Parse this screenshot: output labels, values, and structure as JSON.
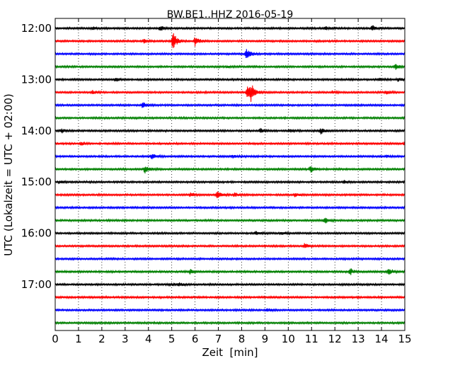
{
  "chart_data": {
    "type": "line",
    "chart_kind": "seismogram-dayplot",
    "title": "BW.BE1..HHZ 2016-05-19",
    "xlabel": "Zeit  [min]",
    "ylabel": "UTC (Lokalzeit = UTC + 02:00)",
    "xlim": [
      0,
      15
    ],
    "x_ticks": [
      "0",
      "1",
      "2",
      "3",
      "4",
      "5",
      "6",
      "7",
      "8",
      "9",
      "10",
      "11",
      "12",
      "13",
      "14",
      "15"
    ],
    "y_tick_labels": [
      "12:00",
      "13:00",
      "14:00",
      "15:00",
      "16:00",
      "17:00"
    ],
    "grid": "vertical dotted at each minute",
    "trace_interval_minutes": 15,
    "color_cycle": [
      "#000000",
      "#ff0000",
      "#0000ff",
      "#008000"
    ],
    "traces": [
      {
        "start": "12:00",
        "events": [
          {
            "t": 4.5,
            "a": 0.45
          },
          {
            "t": 11.6,
            "a": 0.35
          },
          {
            "t": 13.6,
            "a": 0.5
          },
          {
            "t": 1.6,
            "a": 0.2
          }
        ]
      },
      {
        "start": "12:15",
        "events": [
          {
            "t": 5.05,
            "a": 1.6
          },
          {
            "t": 6.0,
            "a": 0.9
          },
          {
            "t": 3.8,
            "a": 0.35
          }
        ]
      },
      {
        "start": "12:30",
        "events": [
          {
            "t": 8.2,
            "a": 1.0
          }
        ]
      },
      {
        "start": "12:45",
        "events": [
          {
            "t": 14.6,
            "a": 0.5
          },
          {
            "t": 7.4,
            "a": 0.2
          }
        ]
      },
      {
        "start": "13:00",
        "events": [
          {
            "t": 2.6,
            "a": 0.35
          },
          {
            "t": 13.9,
            "a": 0.3
          },
          {
            "t": 14.7,
            "a": 0.3
          }
        ]
      },
      {
        "start": "13:15",
        "events": [
          {
            "t": 8.25,
            "a": 1.1
          },
          {
            "t": 8.4,
            "a": 1.4
          },
          {
            "t": 1.6,
            "a": 0.3
          },
          {
            "t": 11.9,
            "a": 0.25
          },
          {
            "t": 14.2,
            "a": 0.3
          }
        ]
      },
      {
        "start": "13:30",
        "events": [
          {
            "t": 3.75,
            "a": 0.5
          }
        ]
      },
      {
        "start": "13:45",
        "events": []
      },
      {
        "start": "14:00",
        "events": [
          {
            "t": 0.25,
            "a": 0.4
          },
          {
            "t": 8.8,
            "a": 0.45
          },
          {
            "t": 10.05,
            "a": 0.3
          },
          {
            "t": 11.4,
            "a": 0.5
          }
        ]
      },
      {
        "start": "14:15",
        "events": [
          {
            "t": 1.1,
            "a": 0.3
          },
          {
            "t": 15.0,
            "a": 0.4
          }
        ]
      },
      {
        "start": "14:30",
        "events": [
          {
            "t": 4.15,
            "a": 0.6
          },
          {
            "t": 7.6,
            "a": 0.3
          },
          {
            "t": 14.2,
            "a": 0.25
          }
        ]
      },
      {
        "start": "14:45",
        "events": [
          {
            "t": 3.85,
            "a": 0.8
          },
          {
            "t": 10.95,
            "a": 0.7
          }
        ]
      },
      {
        "start": "15:00",
        "events": [
          {
            "t": 0.2,
            "a": 0.3
          },
          {
            "t": 12.4,
            "a": 0.3
          }
        ]
      },
      {
        "start": "15:15",
        "events": [
          {
            "t": 6.95,
            "a": 0.7
          },
          {
            "t": 5.8,
            "a": 0.35
          },
          {
            "t": 7.7,
            "a": 0.35
          },
          {
            "t": 10.3,
            "a": 0.35
          }
        ]
      },
      {
        "start": "15:30",
        "events": []
      },
      {
        "start": "15:45",
        "events": [
          {
            "t": 11.55,
            "a": 0.5
          }
        ]
      },
      {
        "start": "16:00",
        "events": [
          {
            "t": 8.6,
            "a": 0.35
          },
          {
            "t": 9.7,
            "a": 0.3
          }
        ]
      },
      {
        "start": "16:15",
        "events": [
          {
            "t": 10.7,
            "a": 0.45
          }
        ]
      },
      {
        "start": "16:30",
        "events": []
      },
      {
        "start": "16:45",
        "events": [
          {
            "t": 5.8,
            "a": 0.5
          },
          {
            "t": 12.65,
            "a": 0.6
          },
          {
            "t": 14.3,
            "a": 0.7
          }
        ]
      },
      {
        "start": "17:00",
        "events": [
          {
            "t": 5.3,
            "a": 0.3
          },
          {
            "t": 4.95,
            "a": 0.25
          }
        ]
      },
      {
        "start": "17:15",
        "events": []
      },
      {
        "start": "17:30",
        "events": [
          {
            "t": 9.1,
            "a": 0.35
          }
        ]
      },
      {
        "start": "17:45",
        "events": []
      }
    ]
  }
}
